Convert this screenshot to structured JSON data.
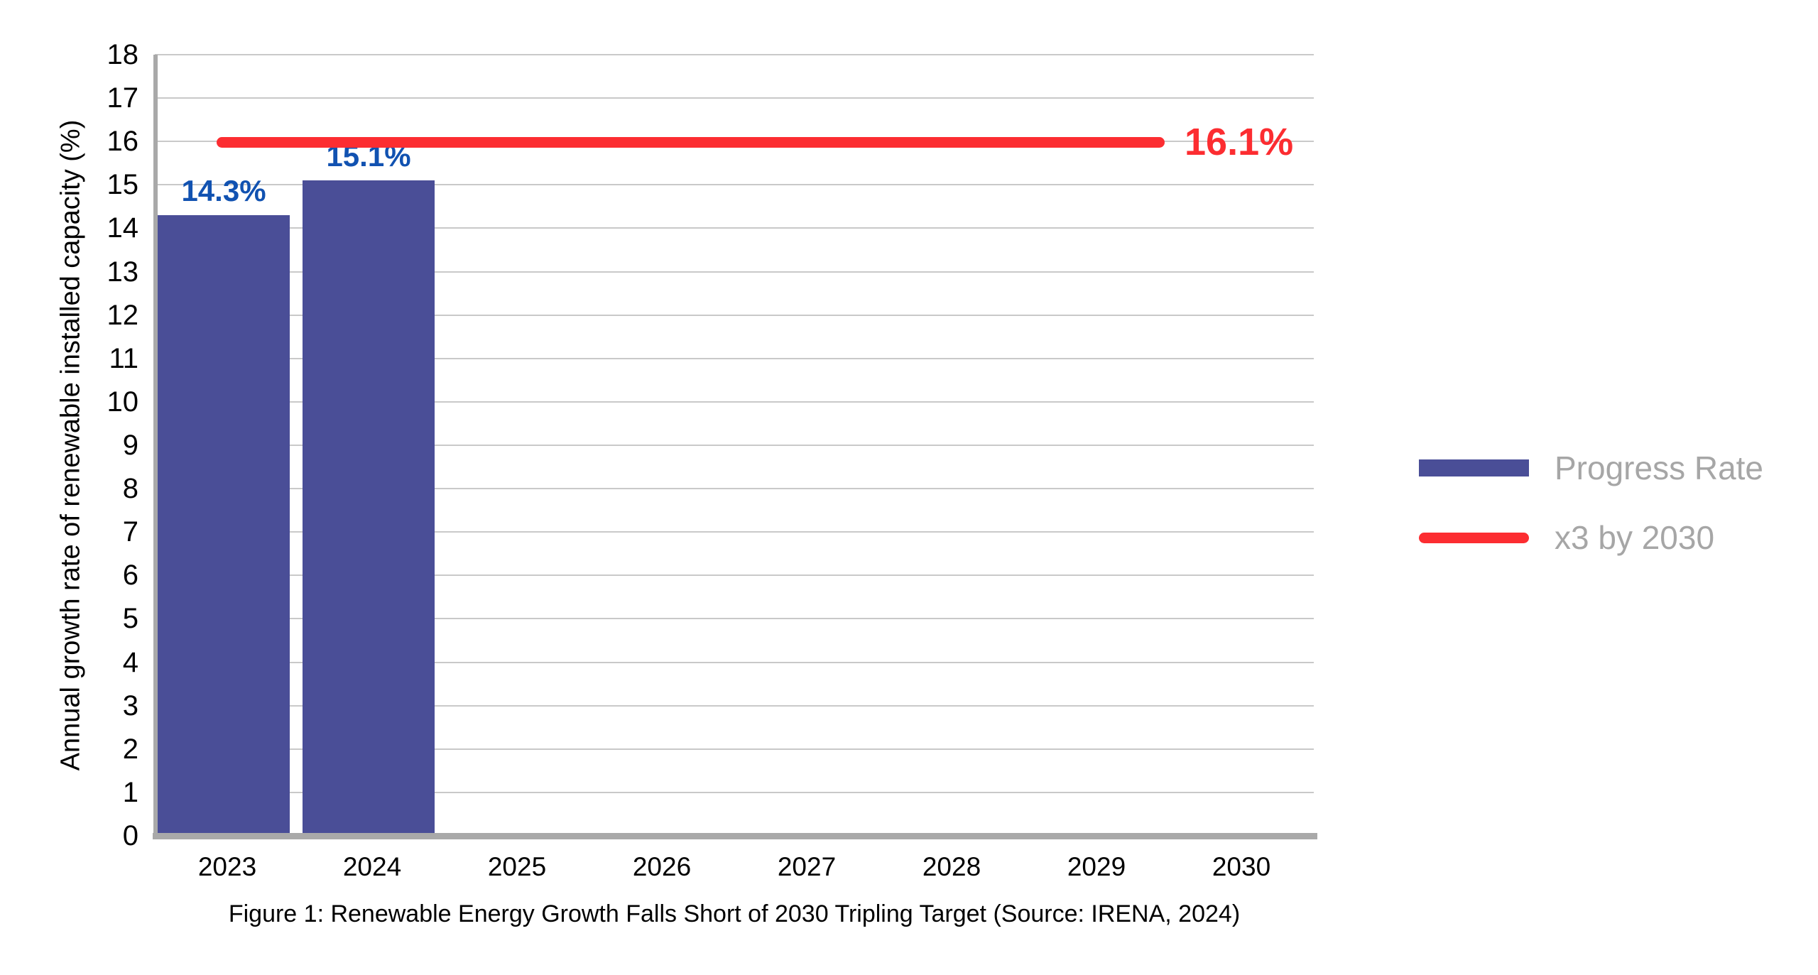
{
  "chart_data": {
    "type": "bar",
    "categories": [
      "2023",
      "2024",
      "2025",
      "2026",
      "2027",
      "2028",
      "2029",
      "2030"
    ],
    "series": [
      {
        "name": "Progress Rate",
        "type": "bar",
        "color": "#4a4e97",
        "values": [
          14.3,
          15.1,
          null,
          null,
          null,
          null,
          null,
          null
        ],
        "data_labels": [
          "14.3%",
          "15.1%",
          null,
          null,
          null,
          null,
          null,
          null
        ]
      },
      {
        "name": "x3 by 2030",
        "type": "hline",
        "color": "#fc2d31",
        "value": 16.1,
        "data_label": "16.1%"
      }
    ],
    "title": "",
    "xlabel": "",
    "ylabel": "Annual growth rate of renewable installed capacity (%)",
    "ylim": [
      0,
      18
    ],
    "yticks": [
      0,
      1,
      2,
      3,
      4,
      5,
      6,
      7,
      8,
      9,
      10,
      11,
      12,
      13,
      14,
      15,
      16,
      17,
      18
    ],
    "grid": true,
    "legend_position": "right",
    "caption": "Figure 1: Renewable Energy Growth Falls Short of 2030 Tripling Target (Source: IRENA, 2024)",
    "data_label_color": "#1152b1"
  },
  "legend": {
    "items": [
      {
        "label": "Progress Rate",
        "swatch": "bar",
        "color": "#4a4e97"
      },
      {
        "label": "x3 by 2030",
        "swatch": "line",
        "color": "#fc2d31"
      }
    ]
  },
  "colors": {
    "bar": "#4a4e97",
    "target": "#fc2d31",
    "data_label": "#1152b1",
    "gridline": "#c9c9c9",
    "axis": "#a9a9a9",
    "legend_text": "#a6a6a6"
  }
}
